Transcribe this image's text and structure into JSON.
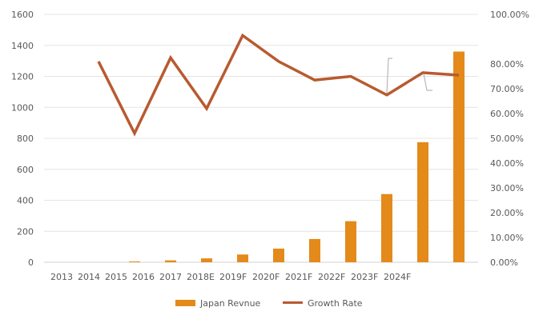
{
  "chart_data": {
    "type": "bar+line",
    "categories": [
      "2013",
      "2014",
      "2015",
      "2016",
      "2017",
      "2018E",
      "2019F",
      "2020F",
      "2021F",
      "2022F",
      "2023F",
      "2024F"
    ],
    "series": [
      {
        "name": "Japan Revnue",
        "type": "bar",
        "axis": "left",
        "color": "#E38A1A",
        "values": [
          0,
          0,
          5,
          12,
          25,
          50,
          88,
          150,
          265,
          440,
          775,
          1360
        ]
      },
      {
        "name": "Growth Rate",
        "type": "line",
        "axis": "right",
        "color": "#B85A30",
        "values": [
          null,
          81,
          52,
          82.5,
          62,
          91.5,
          81,
          73.5,
          75,
          67.5,
          76.5,
          75.5
        ]
      }
    ],
    "y_left": {
      "range": [
        0,
        1600
      ],
      "ticks": [
        "0",
        "200",
        "400",
        "600",
        "800",
        "1000",
        "1200",
        "1400",
        "1600"
      ]
    },
    "y_right": {
      "range": [
        0,
        100
      ],
      "unit": "%",
      "ticks": [
        "0.00%",
        "10.00%",
        "20.00%",
        "30.00%",
        "40.00%",
        "50.00%",
        "60.00%",
        "70.00%",
        "80.00%",
        "100.00%"
      ]
    },
    "grid": true,
    "legend_placement": "bottom",
    "legend": [
      "Japan Revnue",
      "Growth Rate"
    ],
    "title": "",
    "xlabel": "",
    "ylabel": ""
  }
}
